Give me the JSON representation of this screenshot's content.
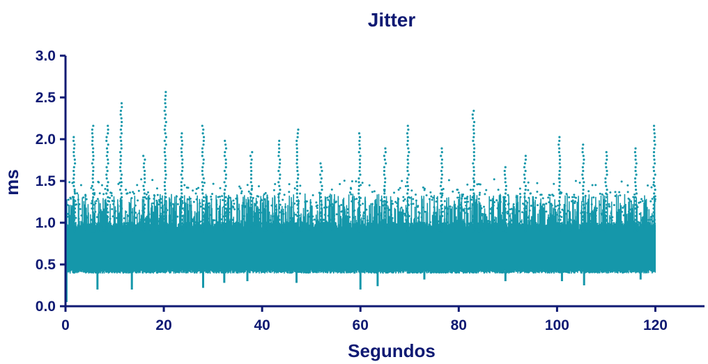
{
  "chart_data": {
    "type": "scatter",
    "title": "Jitter",
    "xlabel": "Segundos",
    "ylabel": "ms",
    "xlim": [
      0,
      130
    ],
    "ylim": [
      0,
      3.0
    ],
    "xticks": [
      "0",
      "20",
      "40",
      "60",
      "80",
      "100",
      "120"
    ],
    "xtick_values": [
      0,
      20,
      40,
      60,
      80,
      100,
      120
    ],
    "yticks": [
      "0.0",
      "0.5",
      "1.0",
      "1.5",
      "2.0",
      "2.5",
      "3.0"
    ],
    "ytick_values": [
      0,
      0.5,
      1.0,
      1.5,
      2.0,
      2.5,
      3.0
    ],
    "grid": false,
    "legend": "none",
    "series_color": "#1597aa",
    "axis_color": "#0f1a73",
    "series": [
      {
        "x_range": [
          0,
          120
        ],
        "band_low": 0.42,
        "band_high": 0.9,
        "typical_max": 1.55,
        "peaks": [
          {
            "x": 1.8,
            "y": 2.05
          },
          {
            "x": 5.5,
            "y": 2.2
          },
          {
            "x": 8.5,
            "y": 2.2
          },
          {
            "x": 11.3,
            "y": 2.47
          },
          {
            "x": 16.0,
            "y": 1.8
          },
          {
            "x": 20.3,
            "y": 2.6
          },
          {
            "x": 23.7,
            "y": 2.08
          },
          {
            "x": 28.0,
            "y": 2.2
          },
          {
            "x": 32.5,
            "y": 1.98
          },
          {
            "x": 37.8,
            "y": 1.85
          },
          {
            "x": 43.5,
            "y": 1.98
          },
          {
            "x": 47.2,
            "y": 2.15
          },
          {
            "x": 52.0,
            "y": 1.75
          },
          {
            "x": 59.8,
            "y": 2.1
          },
          {
            "x": 65.0,
            "y": 1.9
          },
          {
            "x": 69.7,
            "y": 2.18
          },
          {
            "x": 76.5,
            "y": 1.92
          },
          {
            "x": 83.0,
            "y": 2.36
          },
          {
            "x": 89.5,
            "y": 1.7
          },
          {
            "x": 93.5,
            "y": 1.8
          },
          {
            "x": 100.5,
            "y": 2.05
          },
          {
            "x": 105.3,
            "y": 1.95
          },
          {
            "x": 110.0,
            "y": 1.88
          },
          {
            "x": 116.0,
            "y": 1.9
          },
          {
            "x": 119.8,
            "y": 2.2
          }
        ],
        "dips": [
          {
            "x": 0.2,
            "y": 0.05
          },
          {
            "x": 6.5,
            "y": 0.2
          },
          {
            "x": 13.5,
            "y": 0.2
          },
          {
            "x": 28.0,
            "y": 0.22
          },
          {
            "x": 32.3,
            "y": 0.28
          },
          {
            "x": 37.0,
            "y": 0.3
          },
          {
            "x": 47.0,
            "y": 0.28
          },
          {
            "x": 60.0,
            "y": 0.2
          },
          {
            "x": 63.5,
            "y": 0.24
          },
          {
            "x": 73.0,
            "y": 0.32
          },
          {
            "x": 89.5,
            "y": 0.3
          },
          {
            "x": 101.0,
            "y": 0.3
          },
          {
            "x": 105.5,
            "y": 0.25
          },
          {
            "x": 117.0,
            "y": 0.32
          }
        ]
      }
    ]
  }
}
